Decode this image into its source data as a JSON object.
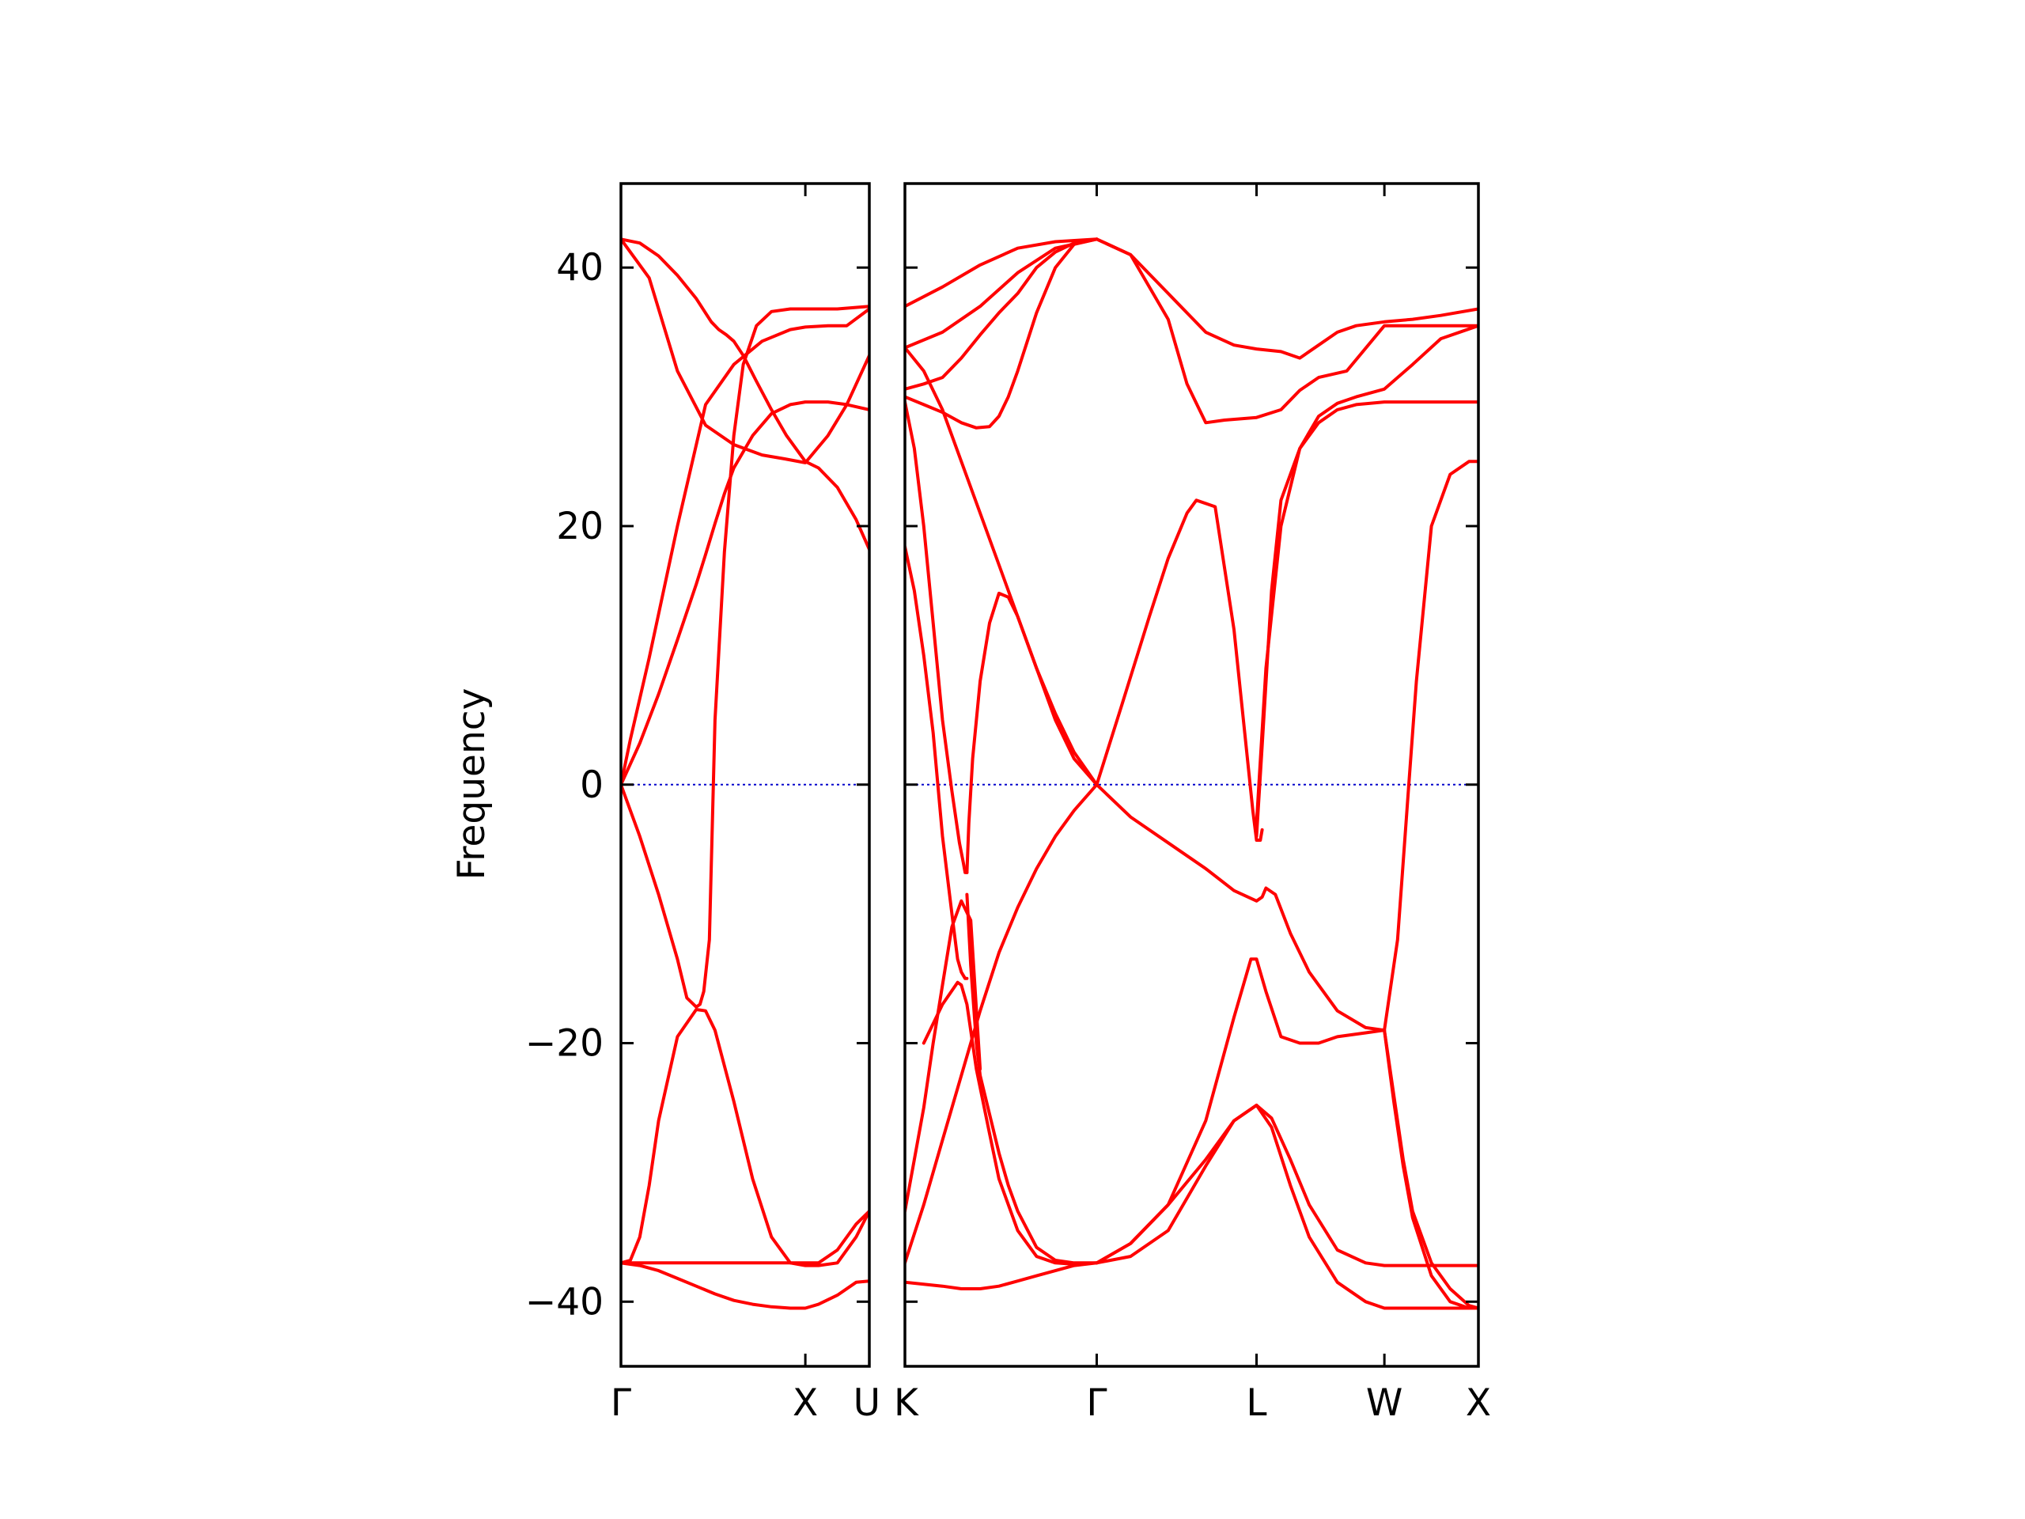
{
  "chart_data": {
    "type": "line",
    "title": "",
    "ylabel": "Frequency",
    "ylim": [
      -45,
      46.5
    ],
    "yticks": [
      -40,
      -20,
      0,
      20,
      40
    ],
    "ytick_labels": [
      "−40",
      "−20",
      "0",
      "20",
      "40"
    ],
    "grid": false,
    "line_color": "#ff0000",
    "zero_line_color": "#0000cc",
    "panels": [
      {
        "name": "left",
        "xlim": [
          0,
          1.32
        ],
        "xticks": [
          0,
          0.98,
          1.32
        ],
        "xtick_labels": [
          "Γ",
          "X",
          "U"
        ],
        "series": [
          {
            "x": [
              0,
              0.1,
              0.2,
              0.3,
              0.4,
              0.48,
              0.52,
              0.56,
              0.6,
              0.65,
              0.72,
              0.8,
              0.88,
              0.98,
              1.05,
              1.15,
              1.25,
              1.32
            ],
            "y": [
              42.2,
              41.9,
              40.9,
              39.4,
              37.6,
              35.8,
              35.2,
              34.8,
              34.3,
              33.2,
              31.2,
              29.0,
              27.0,
              25.0,
              24.5,
              23.0,
              20.5,
              18.2
            ]
          },
          {
            "x": [
              0,
              0.15,
              0.3,
              0.45,
              0.6,
              0.75,
              0.87,
              0.98,
              1.1,
              1.2,
              1.32
            ],
            "y": [
              42.2,
              39.2,
              32.0,
              27.8,
              26.3,
              25.5,
              25.2,
              24.9,
              27.0,
              29.4,
              33.2
            ]
          },
          {
            "x": [
              0,
              0.05,
              0.15,
              0.3,
              0.45,
              0.6,
              0.75,
              0.9,
              0.98,
              1.1,
              1.2,
              1.32
            ],
            "y": [
              0,
              3.5,
              9.8,
              20.0,
              29.4,
              32.5,
              34.3,
              35.2,
              35.4,
              35.5,
              35.5,
              36.8
            ]
          },
          {
            "x": [
              0,
              0.1,
              0.2,
              0.3,
              0.4,
              0.45,
              0.5,
              0.55,
              0.6,
              0.7,
              0.8,
              0.9,
              0.98,
              1.1,
              1.2,
              1.32
            ],
            "y": [
              0,
              3.2,
              7.0,
              11.2,
              15.5,
              17.8,
              20.2,
              22.5,
              24.5,
              27.0,
              28.7,
              29.4,
              29.6,
              29.6,
              29.4,
              29.0
            ]
          },
          {
            "x": [
              0,
              0.1,
              0.2,
              0.3,
              0.35,
              0.4,
              0.42,
              0.44,
              0.47,
              0.5,
              0.55,
              0.6,
              0.65,
              0.72,
              0.8,
              0.9,
              0.98,
              1.05,
              1.15,
              1.32
            ],
            "y": [
              0,
              -4.0,
              -8.5,
              -13.5,
              -16.5,
              -17.2,
              -17.0,
              -16.0,
              -12.0,
              5.0,
              18.0,
              27.0,
              32.5,
              35.5,
              36.6,
              36.8,
              36.8,
              36.8,
              36.8,
              37.0
            ]
          },
          {
            "x": [
              0,
              0.05,
              0.1,
              0.15,
              0.2,
              0.3,
              0.4,
              0.45,
              0.5,
              0.6,
              0.7,
              0.8,
              0.9,
              0.98,
              1.05,
              1.15,
              1.25,
              1.32
            ],
            "y": [
              -37.0,
              -36.8,
              -35.0,
              -31.0,
              -26.0,
              -19.5,
              -17.4,
              -17.5,
              -19.0,
              -24.5,
              -30.5,
              -35.0,
              -37.0,
              -37.2,
              -37.2,
              -37.0,
              -35.0,
              -33.0
            ]
          },
          {
            "x": [
              0,
              0.1,
              0.2,
              0.3,
              0.4,
              0.5,
              0.6,
              0.7,
              0.8,
              0.9,
              0.98,
              1.05,
              1.15,
              1.25,
              1.32
            ],
            "y": [
              -37.0,
              -37.0,
              -37.0,
              -37.0,
              -37.0,
              -37.0,
              -37.0,
              -37.0,
              -37.0,
              -37.0,
              -37.0,
              -37.0,
              -36.0,
              -34.0,
              -33.0
            ]
          },
          {
            "x": [
              0,
              0.1,
              0.2,
              0.3,
              0.4,
              0.5,
              0.6,
              0.7,
              0.8,
              0.9,
              0.98,
              1.05,
              1.15,
              1.25,
              1.32
            ],
            "y": [
              -37.0,
              -37.2,
              -37.6,
              -38.2,
              -38.8,
              -39.4,
              -39.9,
              -40.2,
              -40.4,
              -40.5,
              -40.5,
              -40.2,
              -39.5,
              -38.5,
              -38.4
            ]
          }
        ]
      },
      {
        "name": "right",
        "xlim": [
          0,
          3.05
        ],
        "xticks": [
          0,
          1.02,
          1.87,
          2.55,
          3.05
        ],
        "xtick_labels": [
          "K",
          "Γ",
          "L",
          "W",
          "X"
        ],
        "series": [
          {
            "x": [
              0,
              0.2,
              0.4,
              0.6,
              0.8,
              1.02,
              1.2,
              1.4,
              1.6,
              1.75,
              1.87,
              2.0,
              2.1,
              2.2,
              2.3,
              2.4,
              2.55,
              2.7,
              2.85,
              3.05
            ],
            "y": [
              37.0,
              38.5,
              40.2,
              41.5,
              42.0,
              42.2,
              41.0,
              38.0,
              35.0,
              34.0,
              33.7,
              33.5,
              33.0,
              34.0,
              35.0,
              35.5,
              35.8,
              36.0,
              36.3,
              36.8
            ]
          },
          {
            "x": [
              0,
              0.2,
              0.4,
              0.6,
              0.8,
              1.02,
              1.2,
              1.4,
              1.5,
              1.6,
              1.7,
              1.87,
              2.0,
              2.1,
              2.2,
              2.35,
              2.55,
              2.7,
              2.85,
              3.05
            ],
            "y": [
              33.8,
              35.0,
              37.0,
              39.6,
              41.5,
              42.2,
              41.0,
              36.0,
              31.0,
              28.0,
              28.2,
              28.4,
              29.0,
              30.5,
              31.5,
              32.0,
              35.5,
              35.5,
              35.5,
              35.5
            ]
          },
          {
            "x": [
              0,
              0.1,
              0.2,
              0.3,
              0.4,
              0.5,
              0.6,
              0.7,
              0.8,
              0.9,
              1.02
            ],
            "y": [
              30.6,
              31.0,
              31.5,
              33.0,
              34.8,
              36.5,
              38.0,
              40.0,
              41.2,
              41.9,
              42.2
            ]
          },
          {
            "x": [
              0,
              0.1,
              0.2,
              0.3,
              0.38,
              0.45,
              0.5,
              0.55,
              0.6,
              0.7,
              0.8,
              0.9,
              1.02
            ],
            "y": [
              30.0,
              29.4,
              28.8,
              28.0,
              27.6,
              27.7,
              28.5,
              30.0,
              32.0,
              36.5,
              40.0,
              41.8,
              42.2
            ]
          },
          {
            "x": [
              0,
              0.1,
              0.2,
              0.3,
              0.4,
              0.5,
              0.6,
              0.7,
              0.8,
              0.9,
              1.02
            ],
            "y": [
              33.8,
              32.0,
              29.0,
              25.0,
              21.0,
              17.0,
              13.0,
              9.0,
              5.5,
              2.5,
              0
            ]
          },
          {
            "x": [
              0,
              0.05,
              0.1,
              0.15,
              0.2,
              0.25,
              0.28,
              0.3,
              0.32,
              0.33
            ],
            "y": [
              18.4,
              15.0,
              10.0,
              4.0,
              -4.0,
              -10.0,
              -13.5,
              -14.5,
              -15.0,
              -15.0
            ]
          },
          {
            "x": [
              0,
              0.05,
              0.1,
              0.15,
              0.2,
              0.25,
              0.29,
              0.31,
              0.32,
              0.33
            ],
            "y": [
              29.6,
              26.0,
              20.0,
              12.5,
              5.0,
              -0.5,
              -4.5,
              -6.0,
              -6.8,
              -6.8
            ]
          },
          {
            "x": [
              0.33,
              0.34,
              0.36,
              0.4,
              0.45,
              0.5,
              0.55,
              0.6,
              0.7,
              0.8,
              0.9,
              1.02
            ],
            "y": [
              -6.8,
              -3.0,
              2.0,
              8.0,
              12.5,
              14.8,
              14.5,
              13.0,
              9.0,
              5.0,
              2.0,
              0
            ]
          },
          {
            "x": [
              0.33,
              0.35,
              0.38,
              0.4,
              0.45,
              0.5,
              0.55,
              0.6,
              0.7,
              0.8,
              0.9,
              0.95,
              1.02
            ],
            "y": [
              -8.5,
              -14.0,
              -20.0,
              -22.5,
              -25.5,
              -28.5,
              -31.0,
              -33.0,
              -35.8,
              -36.8,
              -37.0,
              -37.0,
              -37.0
            ]
          },
          {
            "x": [
              0.1,
              0.2,
              0.28,
              0.3,
              0.33,
              0.38,
              0.45,
              0.5,
              0.6,
              0.7,
              0.8,
              0.9,
              1.02
            ],
            "y": [
              -20.0,
              -17.0,
              -15.3,
              -15.5,
              -17.0,
              -22.0,
              -27.0,
              -30.5,
              -34.5,
              -36.5,
              -37.0,
              -37.1,
              -37.0
            ]
          },
          {
            "x": [
              0,
              0.1,
              0.2,
              0.3,
              0.4,
              0.5,
              0.6,
              0.7,
              0.8,
              0.9,
              1.02
            ],
            "y": [
              -37.0,
              -32.5,
              -27.5,
              -22.5,
              -17.5,
              -13.0,
              -9.5,
              -6.5,
              -4.0,
              -2.0,
              0
            ]
          },
          {
            "x": [
              0,
              0.05,
              0.1,
              0.15,
              0.2,
              0.25,
              0.3,
              0.35,
              0.4
            ],
            "y": [
              -33.0,
              -29.0,
              -25.0,
              -20.0,
              -15.5,
              -11.0,
              -9.0,
              -10.5,
              -22.0
            ]
          },
          {
            "x": [
              0,
              0.2,
              0.3,
              0.4,
              0.5,
              0.6,
              0.7,
              0.8,
              0.9,
              1.02
            ],
            "y": [
              -38.5,
              -38.8,
              -39.0,
              -39.0,
              -38.8,
              -38.4,
              -38.0,
              -37.6,
              -37.2,
              -37.0
            ]
          },
          {
            "x": [
              1.02,
              1.2,
              1.4,
              1.6,
              1.75,
              1.87,
              1.9,
              1.92,
              1.97,
              2.05,
              2.15,
              2.3,
              2.45,
              2.55
            ],
            "y": [
              0,
              -2.5,
              -4.5,
              -6.5,
              -8.2,
              -9.0,
              -8.7,
              -8.0,
              -8.5,
              -11.5,
              -14.5,
              -17.5,
              -18.8,
              -19.0
            ]
          },
          {
            "x": [
              1.02,
              1.15,
              1.3,
              1.4,
              1.5,
              1.55,
              1.65,
              1.75,
              1.8,
              1.85,
              1.87,
              1.89,
              1.9
            ],
            "y": [
              0,
              6.0,
              13.0,
              17.5,
              21.0,
              22.0,
              21.5,
              12.0,
              5.0,
              -2.0,
              -4.3,
              -4.3,
              -3.5
            ]
          },
          {
            "x": [
              1.87,
              1.9,
              1.95,
              2.0,
              2.1,
              2.2,
              2.3,
              2.4,
              2.55,
              2.7,
              2.85,
              3.05
            ],
            "y": [
              -4.0,
              3.0,
              15.0,
              22.0,
              26.0,
              28.0,
              29.0,
              29.4,
              29.6,
              29.6,
              29.6,
              29.6
            ]
          },
          {
            "x": [
              1.87,
              1.92,
              2.0,
              2.1,
              2.2,
              2.3,
              2.4,
              2.55,
              2.7,
              2.85,
              3.05
            ],
            "y": [
              -3.0,
              9.0,
              20.0,
              26.0,
              28.5,
              29.5,
              30.0,
              30.6,
              32.5,
              34.5,
              35.5
            ]
          },
          {
            "x": [
              2.55,
              2.62,
              2.68,
              2.72,
              2.8,
              2.9,
              3.0,
              3.05
            ],
            "y": [
              -19.0,
              -12.0,
              0,
              8.0,
              20.0,
              24.0,
              25.0,
              25.0
            ]
          },
          {
            "x": [
              1.02,
              1.2,
              1.4,
              1.6,
              1.75,
              1.84,
              1.87,
              1.92,
              2.0,
              2.1,
              2.2,
              2.3,
              2.45,
              2.55
            ],
            "y": [
              -37.0,
              -35.5,
              -32.5,
              -26.0,
              -18.0,
              -13.5,
              -13.5,
              -16.0,
              -19.5,
              -20.0,
              -20.0,
              -19.5,
              -19.2,
              -19.0
            ]
          },
          {
            "x": [
              1.02,
              1.2,
              1.4,
              1.6,
              1.75,
              1.87,
              1.95,
              2.05,
              2.15,
              2.3,
              2.45,
              2.55,
              2.7,
              2.85,
              3.05
            ],
            "y": [
              -37.0,
              -35.5,
              -32.5,
              -29.0,
              -26.0,
              -24.8,
              -25.8,
              -29.0,
              -32.5,
              -36.0,
              -37.0,
              -37.2,
              -37.2,
              -37.2,
              -37.2
            ]
          },
          {
            "x": [
              1.02,
              1.2,
              1.4,
              1.6,
              1.75,
              1.87,
              1.95,
              2.05,
              2.15,
              2.3,
              2.45,
              2.55,
              2.7,
              2.85,
              3.05
            ],
            "y": [
              -37.0,
              -36.5,
              -34.5,
              -29.5,
              -26.0,
              -24.8,
              -26.5,
              -31.0,
              -35.0,
              -38.5,
              -40.0,
              -40.5,
              -40.5,
              -40.5,
              -40.5
            ]
          },
          {
            "x": [
              2.55,
              2.6,
              2.65,
              2.7,
              2.8,
              2.9,
              3.0,
              3.05
            ],
            "y": [
              -19.0,
              -24.0,
              -29.0,
              -33.0,
              -37.0,
              -39.0,
              -40.3,
              -40.5
            ]
          },
          {
            "x": [
              2.55,
              2.6,
              2.65,
              2.7,
              2.8,
              2.9,
              3.0,
              3.05
            ],
            "y": [
              -19.0,
              -24.5,
              -29.5,
              -33.5,
              -38.0,
              -40.0,
              -40.5,
              -40.5
            ]
          }
        ]
      }
    ]
  }
}
